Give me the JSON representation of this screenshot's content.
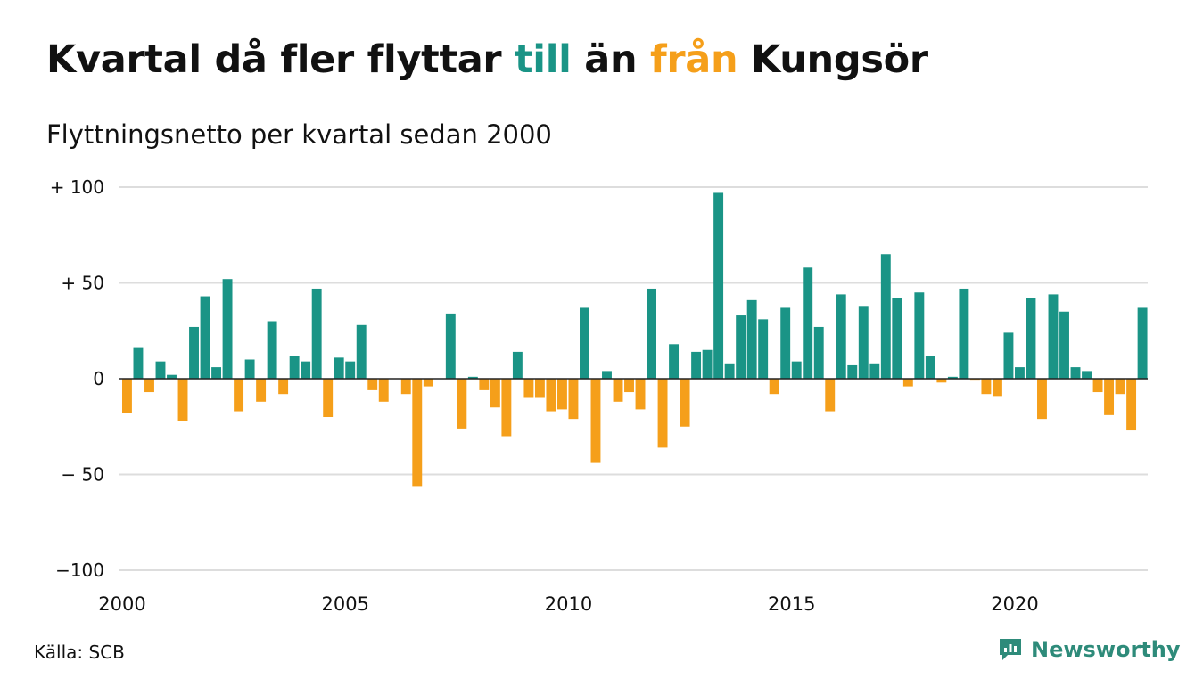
{
  "title": {
    "part1": "Kvartal då fler flyttar ",
    "till": "till",
    "part2": " än ",
    "fran": "från",
    "part3": " Kungsör"
  },
  "subtitle": "Flyttningsnetto per kvartal sedan 2000",
  "source": "Källa: SCB",
  "brand": "Newsworthy",
  "colors": {
    "positive": "#1a9486",
    "negative": "#f59f1a",
    "grid": "#dddddd",
    "zero": "#222222",
    "brand": "#2e8b7a"
  },
  "chart_data": {
    "type": "bar",
    "x_start": 2000,
    "periods_per_year": 4,
    "ylim": [
      -100,
      100
    ],
    "yticks": [
      {
        "value": 100,
        "label": "+ 100"
      },
      {
        "value": 50,
        "label": "+  50"
      },
      {
        "value": 0,
        "label": "0"
      },
      {
        "value": -50,
        "label": "− 50"
      },
      {
        "value": -100,
        "label": "−100"
      }
    ],
    "xticks": [
      {
        "value": 2000,
        "label": "2000"
      },
      {
        "value": 2005,
        "label": "2005"
      },
      {
        "value": 2010,
        "label": "2010"
      },
      {
        "value": 2015,
        "label": "2015"
      },
      {
        "value": 2020,
        "label": "2020"
      }
    ],
    "values": [
      -18,
      16,
      -7,
      9,
      2,
      -22,
      27,
      43,
      6,
      52,
      -17,
      10,
      -12,
      30,
      -8,
      12,
      9,
      47,
      -20,
      11,
      9,
      28,
      -6,
      -12,
      0,
      -8,
      -56,
      -4,
      0,
      34,
      -26,
      1,
      -6,
      -15,
      -30,
      14,
      -10,
      -10,
      -17,
      -16,
      -21,
      37,
      -44,
      4,
      -12,
      -7,
      -16,
      47,
      -36,
      18,
      -25,
      14,
      15,
      97,
      8,
      33,
      41,
      31,
      -8,
      37,
      9,
      58,
      27,
      -17,
      44,
      7,
      38,
      8,
      65,
      42,
      -4,
      45,
      12,
      -2,
      1,
      47,
      -1,
      -8,
      -9,
      24,
      6,
      42,
      -21,
      44,
      35,
      6,
      4,
      -7,
      -19,
      -8,
      -27,
      37
    ],
    "grid": true,
    "legend": "none"
  }
}
